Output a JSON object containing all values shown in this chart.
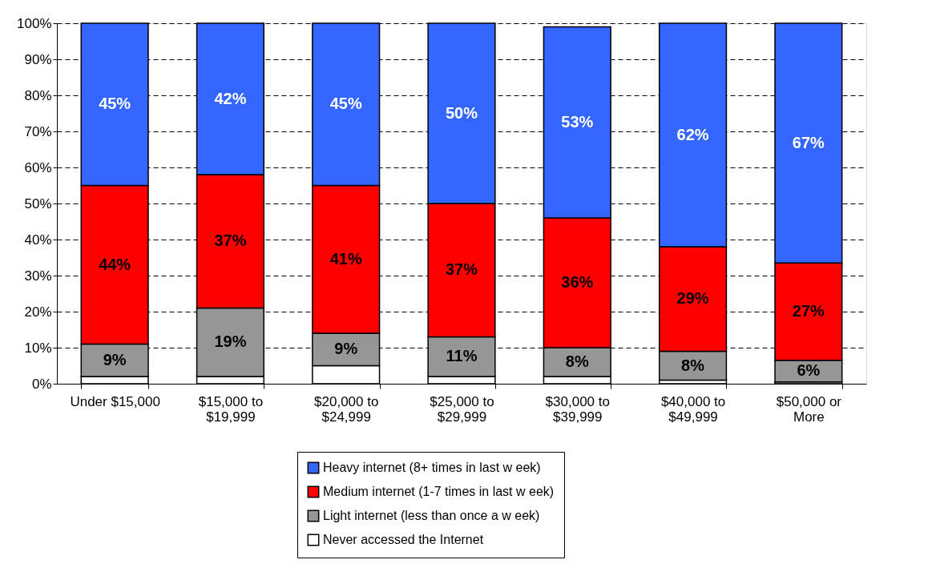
{
  "chart_data": {
    "type": "bar",
    "stacked": true,
    "categories": [
      "Under $15,000",
      "$15,000 to\n$19,999",
      "$20,000 to\n$24,999",
      "$25,000 to\n$29,999",
      "$30,000 to\n$39,999",
      "$40,000 to\n$49,999",
      "$50,000 or\nMore"
    ],
    "series": [
      {
        "name": "Never accessed the Internet",
        "color": "#ffffff",
        "values": [
          2,
          2,
          5,
          2,
          2,
          1,
          0.5
        ],
        "value_labels": [
          null,
          null,
          null,
          null,
          null,
          null,
          null
        ]
      },
      {
        "name": "Light internet (less than once a w eek)",
        "color": "#969696",
        "values": [
          9,
          19,
          9,
          11,
          8,
          8,
          6
        ],
        "value_labels": [
          "9%",
          "19%",
          "9%",
          "11%",
          "8%",
          "8%",
          "6%"
        ]
      },
      {
        "name": "Medium internet (1-7 times in last w eek)",
        "color": "#ff0000",
        "values": [
          44,
          37,
          41,
          37,
          36,
          29,
          27
        ],
        "value_labels": [
          "44%",
          "37%",
          "41%",
          "37%",
          "36%",
          "29%",
          "27%"
        ]
      },
      {
        "name": "Heavy internet (8+ times in last w eek)",
        "color": "#3366ff",
        "values": [
          45,
          42,
          45,
          50,
          53,
          62,
          66.5
        ],
        "value_labels": [
          "45%",
          "42%",
          "45%",
          "50%",
          "53%",
          "62%",
          "67%"
        ]
      }
    ],
    "ylim": [
      0,
      100
    ],
    "yticks": [
      {
        "value": 0,
        "label": "0%"
      },
      {
        "value": 10,
        "label": "10%"
      },
      {
        "value": 20,
        "label": "20%"
      },
      {
        "value": 30,
        "label": "30%"
      },
      {
        "value": 40,
        "label": "40%"
      },
      {
        "value": 50,
        "label": "50%"
      },
      {
        "value": 60,
        "label": "60%"
      },
      {
        "value": 70,
        "label": "70%"
      },
      {
        "value": 80,
        "label": "80%"
      },
      {
        "value": 90,
        "label": "90%"
      },
      {
        "value": 100,
        "label": "100%"
      }
    ],
    "grid": "y",
    "legend": "bottom"
  }
}
